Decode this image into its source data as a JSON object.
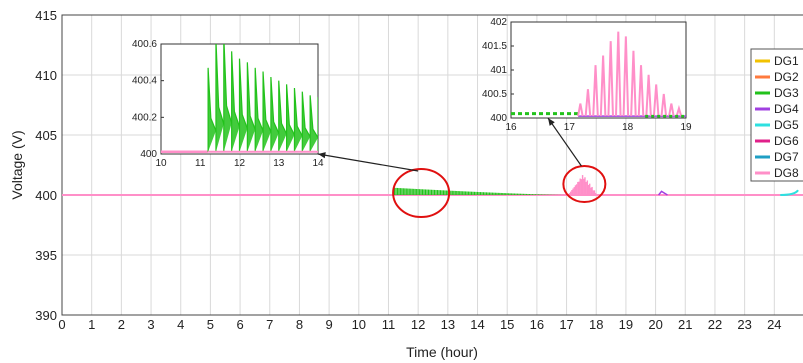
{
  "chart_data": {
    "type": "line",
    "xlabel": "Time (hour)",
    "ylabel": "Voltage (V)",
    "xlim": [
      0,
      25
    ],
    "ylim": [
      390,
      415
    ],
    "xticks": [
      0,
      1,
      2,
      3,
      4,
      5,
      6,
      7,
      8,
      9,
      10,
      11,
      12,
      13,
      14,
      15,
      16,
      17,
      18,
      19,
      20,
      21,
      22,
      23,
      24
    ],
    "yticks": [
      390,
      395,
      400,
      405,
      410,
      415
    ],
    "grid": true,
    "legend_position": "right",
    "series": [
      {
        "name": "DG1",
        "color": "#f2c200"
      },
      {
        "name": "DG2",
        "color": "#ff7a3d"
      },
      {
        "name": "DG3",
        "color": "#22c21b"
      },
      {
        "name": "DG4",
        "color": "#a040e0"
      },
      {
        "name": "DG5",
        "color": "#2ee0e0"
      },
      {
        "name": "DG6",
        "color": "#e0208a"
      },
      {
        "name": "DG7",
        "color": "#1f9fc4"
      },
      {
        "name": "DG8",
        "color": "#ff8fc8"
      }
    ],
    "baseline_voltage": 400,
    "events": [
      {
        "series": "DG3",
        "x_start": 11.2,
        "x_end": 17.0,
        "peak": 400.6
      },
      {
        "series": "DG8",
        "x_start": 17.1,
        "x_end": 18.0,
        "peak": 401.8
      },
      {
        "series": "DG4",
        "x": 20.2,
        "peak": 400.3
      },
      {
        "series": "DG5",
        "x": 24.8,
        "peak": 400.4
      }
    ],
    "insets": [
      {
        "name": "inset-dg3",
        "xlim": [
          10,
          14
        ],
        "ylim": [
          400,
          400.6
        ],
        "xticks": [
          10,
          11,
          12,
          13,
          14
        ],
        "yticks": [
          "400",
          "400.2",
          "400.4",
          "400.6"
        ],
        "series": "DG3",
        "pulse_start": 11.2,
        "pulse_period": 0.2,
        "peaks": [
          400.47,
          400.62,
          400.64,
          400.56,
          400.52,
          400.5,
          400.47,
          400.45,
          400.42,
          400.4,
          400.38,
          400.36,
          400.34,
          400.32,
          400.31
        ]
      },
      {
        "name": "inset-dg8",
        "xlim": [
          16,
          19
        ],
        "ylim": [
          400,
          402
        ],
        "xticks": [
          16,
          17,
          18,
          19
        ],
        "yticks": [
          "400",
          "400.5",
          "401",
          "401.5",
          "402"
        ],
        "series": "DG8",
        "pulse_start": 17.15,
        "pulse_period": 0.13,
        "peaks": [
          400.3,
          400.6,
          401.1,
          401.3,
          401.6,
          401.8,
          401.7,
          401.4,
          401.1,
          400.9,
          400.7,
          400.5,
          400.3,
          400.2
        ]
      }
    ]
  }
}
